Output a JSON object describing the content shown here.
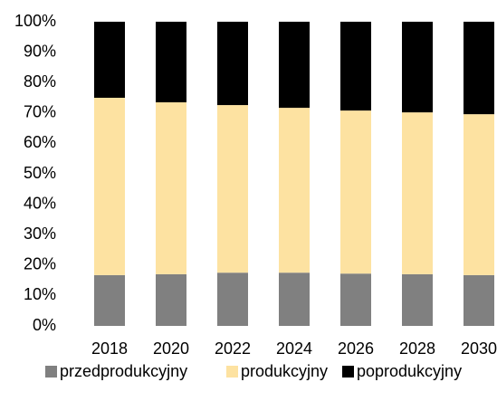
{
  "chart_data": {
    "type": "stacked_bar",
    "categories": [
      "2018",
      "2020",
      "2022",
      "2024",
      "2026",
      "2028",
      "2030"
    ],
    "series": [
      {
        "name": "przedprodukcyjny",
        "color": "#808080",
        "values": [
          16.7,
          17,
          17.5,
          17.5,
          17.2,
          17,
          16.7
        ]
      },
      {
        "name": "produkcyjny",
        "color": "#fde2a1",
        "values": [
          58.3,
          56.5,
          55.1,
          54.2,
          53.6,
          53.2,
          52.9
        ]
      },
      {
        "name": "poprodukcyjny",
        "color": "#000000",
        "values": [
          25,
          26.5,
          27.4,
          28.3,
          29.2,
          29.8,
          30.4
        ]
      }
    ],
    "ylim": [
      0,
      100
    ],
    "yticks": [
      {
        "value": 0,
        "label": "0%"
      },
      {
        "value": 10,
        "label": "10%"
      },
      {
        "value": 20,
        "label": "20%"
      },
      {
        "value": 30,
        "label": "30%"
      },
      {
        "value": 40,
        "label": "40%"
      },
      {
        "value": 50,
        "label": "50%"
      },
      {
        "value": 60,
        "label": "60%"
      },
      {
        "value": 70,
        "label": "70%"
      },
      {
        "value": 80,
        "label": "80%"
      },
      {
        "value": 90,
        "label": "90%"
      },
      {
        "value": 100,
        "label": "100%"
      }
    ],
    "legend": "bottom"
  }
}
